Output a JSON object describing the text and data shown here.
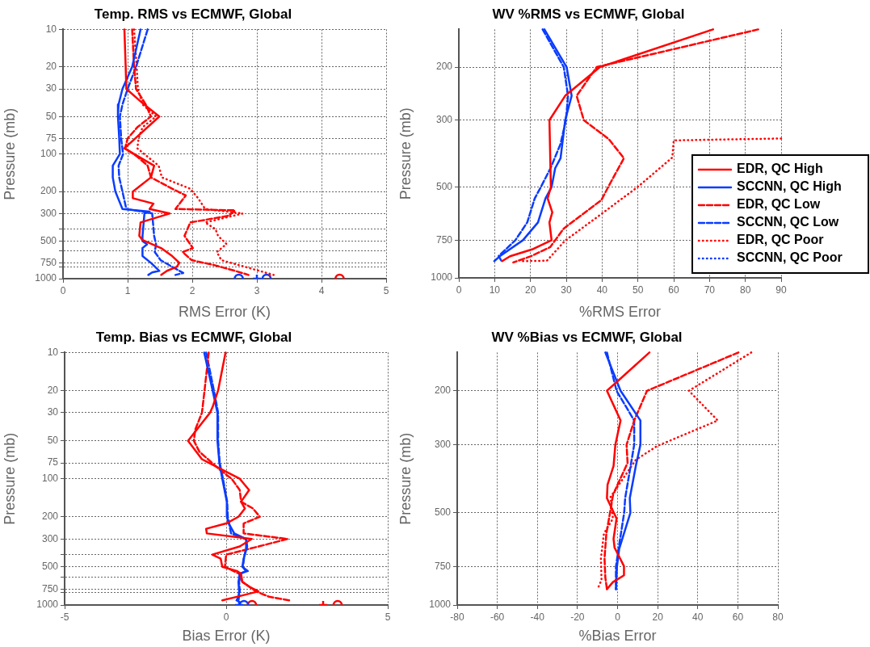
{
  "chart_data": [
    {
      "type": "line",
      "title": "Temp. RMS vs ECMWF, Global",
      "xlabel": "RMS Error (K)",
      "ylabel": "Pressure (mb)",
      "log": "y",
      "grid": true,
      "xlim": [
        0,
        5
      ],
      "xticks": [
        0,
        1,
        2,
        3,
        4,
        5
      ],
      "ylim": [
        1000,
        10
      ],
      "yticks": [
        10,
        20,
        30,
        50,
        75,
        100,
        200,
        300,
        {
          "value": 400,
          "label": null
        },
        500,
        {
          "value": 600,
          "label": null
        },
        750,
        {
          "value": 800,
          "label": null
        },
        1000
      ],
      "series": [
        {
          "color": "#ff0000",
          "line_style": "solid",
          "x": [
            0.95,
            0.97,
            0.98,
            1.23,
            1.49,
            0.95,
            1.41,
            1.36,
            1.08,
            1.08,
            1.4,
            1.34,
            1.65,
            1.2,
            1.18,
            1.23,
            1.53,
            1.69,
            1.8,
            1.76,
            1.61,
            1.52
          ],
          "values": [
            10,
            20,
            30,
            39,
            50,
            90,
            124,
            154,
            200,
            226,
            250,
            276,
            300,
            354,
            454,
            490,
            573,
            659,
            746,
            804,
            865,
            933
          ]
        },
        {
          "color": "#0a3cff",
          "line_style": "solid",
          "x": [
            1.2,
            1.07,
            0.92,
            0.86,
            0.85,
            0.87,
            0.88,
            0.77,
            0.77,
            0.81,
            0.92,
            1.34,
            1.26,
            1.23,
            1.23,
            1.3,
            1.23,
            1.23,
            1.36,
            1.49,
            1.38,
            1.32
          ],
          "values": [
            10,
            20,
            30,
            40,
            50,
            75,
            100,
            124,
            154,
            200,
            276,
            290,
            300,
            454,
            500,
            530,
            568,
            659,
            746,
            865,
            890,
            933
          ]
        },
        {
          "color": "#ff0000",
          "line_style": "dashed",
          "x": [
            1.07,
            1.1,
            1.13,
            1.28,
            1.36,
            1.15,
            1.0,
            0.96,
            1.15,
            1.31,
            1.36,
            1.69,
            1.9,
            1.74,
            2.66,
            2.57,
            1.97,
            1.88,
            2.01,
            1.85,
            1.99,
            2.36,
            2.66,
            2.87
          ],
          "values": [
            10,
            20,
            30,
            40,
            50,
            61,
            75,
            90,
            105,
            124,
            154,
            190,
            215,
            276,
            283,
            312,
            354,
            454,
            568,
            611,
            710,
            783,
            865,
            933
          ]
        },
        {
          "color": "#0a3cff",
          "line_style": "dashed",
          "x": [
            1.31,
            1.13,
            1.0,
            0.92,
            0.88,
            0.9,
            0.93,
            0.86,
            0.87,
            0.92,
            0.98,
            1.23,
            1.38,
            1.41,
            1.44,
            1.42,
            1.51,
            1.69,
            1.86,
            1.74
          ],
          "values": [
            10,
            20,
            30,
            40,
            50,
            75,
            100,
            124,
            154,
            200,
            276,
            290,
            300,
            454,
            530,
            611,
            710,
            804,
            900,
            933
          ]
        },
        {
          "color": "#ff0000",
          "line_style": "dotted",
          "x": [
            1.1,
            1.14,
            1.16,
            1.23,
            1.44,
            1.23,
            1.17,
            1.15,
            1.48,
            1.53,
            1.97,
            2.09,
            2.2,
            2.78,
            2.2,
            2.36,
            2.4,
            2.53,
            2.38,
            2.45,
            2.82,
            3.26,
            3.16
          ],
          "values": [
            10,
            20,
            30,
            40,
            50,
            61,
            75,
            90,
            124,
            154,
            190,
            226,
            276,
            300,
            354,
            401,
            454,
            527,
            611,
            710,
            804,
            933,
            950
          ]
        },
        {
          "type": "scatter",
          "marker": "circle",
          "color": "#0a3cff",
          "x": [
            2.72
          ],
          "values": [
            1000
          ]
        },
        {
          "type": "scatter",
          "marker": "cross",
          "color": "#0a3cff",
          "x": [
            3.0
          ],
          "values": [
            1000
          ]
        },
        {
          "type": "scatter",
          "marker": "circle",
          "color": "#0a3cff",
          "x": [
            3.15
          ],
          "values": [
            1000
          ]
        },
        {
          "type": "scatter",
          "marker": "circle",
          "color": "#ff0000",
          "x": [
            4.28
          ],
          "values": [
            1000
          ]
        }
      ]
    },
    {
      "type": "line",
      "title": "WV %RMS vs ECMWF, Global",
      "xlabel": "%RMS Error",
      "ylabel": "Pressure (mb)",
      "log": "y",
      "grid": true,
      "legend": "right",
      "xlim": [
        0,
        90
      ],
      "xticks": [
        0,
        10,
        20,
        30,
        40,
        50,
        60,
        70,
        80,
        90
      ],
      "ylim": [
        1000,
        150
      ],
      "yticks": [
        200,
        300,
        500,
        750,
        1000
      ],
      "series": [
        {
          "name": "EDR, QC High",
          "color": "#ff0000",
          "line_style": "solid",
          "x": [
            71,
            39.4,
            29.7,
            25.3,
            25.7,
            24.8,
            26.1,
            25.3,
            25.9,
            20.8,
            14.3,
            12.1
          ],
          "values": [
            150,
            200,
            249,
            300,
            500,
            545,
            606,
            655,
            750,
            802,
            848,
            880
          ]
        },
        {
          "name": "SCCNN, QC High",
          "color": "#0a3cff",
          "line_style": "solid",
          "x": [
            23.9,
            30.1,
            31.5,
            29.7,
            28.4,
            26.9,
            25.9,
            24.2,
            22.1,
            17.9,
            11.5,
            9.9
          ],
          "values": [
            150,
            200,
            249,
            300,
            401,
            433,
            500,
            545,
            655,
            750,
            847,
            880
          ]
        },
        {
          "name": "EDR, QC Low",
          "color": "#ff0000",
          "line_style": "dashed",
          "x": [
            83.6,
            38.5,
            32.9,
            34.9,
            41.9,
            46.1,
            42.5,
            39.8,
            29.3,
            25.5,
            20.2,
            15.2
          ],
          "values": [
            150,
            200,
            249,
            300,
            347,
            401,
            480,
            552,
            686,
            791,
            847,
            889
          ]
        },
        {
          "name": "SCCNN, QC Low",
          "color": "#0a3cff",
          "line_style": "dashed",
          "x": [
            23.4,
            29.3,
            30.5,
            29.9,
            28.4,
            25.6,
            22.9,
            21.2,
            19.1,
            15.8,
            11.1,
            12.0
          ],
          "values": [
            150,
            200,
            249,
            300,
            360,
            433,
            500,
            545,
            655,
            750,
            847,
            882
          ]
        },
        {
          "name": "EDR, QC Poor",
          "color": "#ff0000",
          "line_style": "dotted",
          "x": [
            90,
            60.0,
            59.6,
            49.9,
            39.8,
            29.7,
            24.6,
            17.5
          ],
          "values": [
            345,
            350,
            399,
            500,
            614,
            752,
            877,
            880
          ]
        },
        {
          "name": "SCCNN, QC Poor",
          "color": "#0a3cff",
          "line_style": "dotted"
        }
      ]
    },
    {
      "type": "line",
      "title": "Temp. Bias vs ECMWF, Global",
      "xlabel": "Bias Error (K)",
      "ylabel": "Pressure (mb)",
      "log": "y",
      "grid": true,
      "xlim": [
        -5,
        5
      ],
      "xticks": [
        -5,
        0,
        5
      ],
      "ylim": [
        1000,
        10
      ],
      "yticks": [
        10,
        20,
        30,
        50,
        75,
        100,
        200,
        300,
        {
          "value": 400,
          "label": null
        },
        500,
        {
          "value": 600,
          "label": null
        },
        750,
        {
          "value": 800,
          "label": null
        },
        1000
      ],
      "series": [
        {
          "color": "#ff0000",
          "line_style": "solid",
          "x": [
            -0.02,
            -0.25,
            -0.42,
            -0.5,
            -1.18,
            -0.75,
            -0.08,
            0.42,
            0.71,
            0.46,
            0.58,
            0.38,
            0,
            -0.62,
            -0.6,
            0.79,
            0.42,
            -0.43,
            -0.17,
            -0.12,
            0.33,
            0.46,
            0.5,
            0.75,
            1.0,
            0.33,
            -0.12
          ],
          "values": [
            10,
            20,
            27,
            30,
            50,
            70,
            86,
            100,
            123,
            152,
            172,
            200,
            226,
            249,
            271,
            300,
            344,
            399,
            430,
            499,
            538,
            565,
            656,
            725,
            780,
            861,
            919
          ]
        },
        {
          "color": "#0a3cff",
          "line_style": "solid",
          "x": [
            -0.68,
            -0.42,
            -0.27,
            -0.27,
            -0.21,
            -0.12,
            0.02,
            0.02,
            0.08,
            0.25,
            0.62,
            0.65,
            0.54,
            0.5,
            0.67,
            0.42,
            0.38,
            0.4,
            0.38,
            0.32,
            0.42
          ],
          "values": [
            10,
            20,
            30,
            50,
            75,
            100,
            152,
            200,
            226,
            271,
            300,
            344,
            430,
            499,
            538,
            565,
            656,
            780,
            861,
            919,
            950
          ]
        },
        {
          "color": "#ff0000",
          "line_style": "dashed",
          "x": [
            -0.54,
            -0.67,
            -0.75,
            -0.96,
            -1.0,
            -0.83,
            -0.17,
            0.17,
            0.42,
            0.46,
            0.83,
            1.04,
            0.54,
            0.54,
            1.9,
            1.0,
            0,
            -0.04,
            0.4,
            0.5,
            0.92,
            1.33,
            1.96
          ],
          "values": [
            10,
            20,
            30,
            41,
            50,
            61,
            86,
            100,
            123,
            152,
            172,
            200,
            226,
            271,
            300,
            344,
            399,
            499,
            565,
            656,
            780,
            861,
            919
          ]
        },
        {
          "color": "#0a3cff",
          "line_style": "dashed",
          "x": [
            -0.62,
            -0.38,
            -0.25,
            -0.25,
            -0.2,
            -0.1,
            0.03,
            0.05,
            0.15,
            0.6,
            0.62,
            0.55,
            0.52,
            0.6,
            0.45,
            0.4,
            0.42,
            0.38
          ],
          "values": [
            10,
            20,
            30,
            50,
            75,
            100,
            152,
            200,
            271,
            300,
            344,
            430,
            499,
            538,
            565,
            656,
            780,
            919
          ]
        },
        {
          "type": "scatter",
          "marker": "cross",
          "color": "#0a3cff",
          "x": [
            0.4
          ],
          "values": [
            1000
          ]
        },
        {
          "type": "scatter",
          "marker": "circle",
          "color": "#0a3cff",
          "x": [
            0.55
          ],
          "values": [
            1000
          ]
        },
        {
          "type": "scatter",
          "marker": "circle",
          "color": "#ff0000",
          "x": [
            0.8
          ],
          "values": [
            1000
          ]
        },
        {
          "type": "scatter",
          "marker": "cross",
          "color": "#ff0000",
          "x": [
            3.0
          ],
          "values": [
            1000
          ]
        },
        {
          "type": "scatter",
          "marker": "circle",
          "color": "#ff0000",
          "x": [
            3.45
          ],
          "values": [
            1000
          ]
        }
      ]
    },
    {
      "type": "line",
      "title": "WV %Bias vs ECMWF, Global",
      "xlabel": "%Bias Error",
      "ylabel": "Pressure (mb)",
      "log": "y",
      "grid": true,
      "xlim": [
        -80,
        80
      ],
      "xticks": [
        -80,
        -60,
        -40,
        -20,
        0,
        20,
        40,
        60,
        80
      ],
      "ylim": [
        1000,
        150
      ],
      "yticks": [
        200,
        300,
        500,
        750,
        1000
      ],
      "series": [
        {
          "color": "#ff0000",
          "line_style": "solid",
          "x": [
            15.9,
            -5.3,
            1.5,
            -1.1,
            -2.0,
            -5.0,
            -5.3,
            -0.5,
            -2.0,
            -1.5,
            3.2,
            3.2,
            -2.3,
            -5.3
          ],
          "values": [
            150,
            200,
            250,
            300,
            352,
            405,
            448,
            522,
            608,
            650,
            747,
            800,
            842,
            888
          ]
        },
        {
          "color": "#0a3cff",
          "line_style": "solid",
          "x": [
            -6.1,
            1.5,
            11.4,
            11.4,
            9.1,
            6.1,
            6.4,
            0.8,
            -0.3,
            -0.8
          ],
          "values": [
            150,
            200,
            250,
            300,
            352,
            448,
            500,
            656,
            750,
            888
          ]
        },
        {
          "color": "#ff0000",
          "line_style": "dashed",
          "x": [
            60.3,
            14.7,
            8.3,
            4.5,
            5.0,
            0,
            -2.3,
            -3.5,
            -5.6,
            -6.5,
            -6.1,
            -5.3
          ],
          "values": [
            150,
            200,
            250,
            300,
            344,
            405,
            439,
            489,
            585,
            704,
            814,
            888
          ]
        },
        {
          "color": "#0a3cff",
          "line_style": "dashed",
          "x": [
            -5.3,
            -0.5,
            8.3,
            8.3,
            6.5,
            3.8,
            3.3,
            0.5,
            -0.8,
            -0.8
          ],
          "values": [
            150,
            200,
            250,
            300,
            352,
            448,
            500,
            656,
            750,
            888
          ]
        },
        {
          "color": "#ff0000",
          "line_style": "dotted",
          "x": [
            66.7,
            35.6,
            50.0,
            19.7,
            9.1,
            -3.5,
            -2.3,
            -6.8,
            -8.3,
            -8.0,
            -9.5
          ],
          "values": [
            150,
            200,
            250,
            303,
            336,
            444,
            522,
            585,
            704,
            829,
            872
          ]
        }
      ]
    }
  ]
}
